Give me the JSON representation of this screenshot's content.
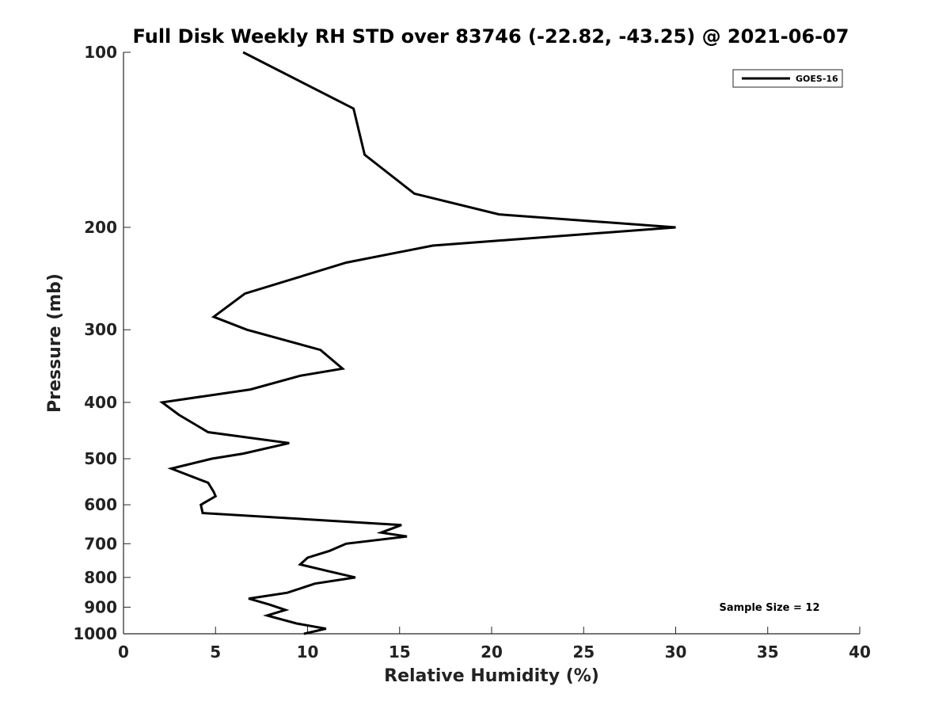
{
  "chart_data": {
    "type": "line",
    "title": "Full Disk Weekly RH STD over 83746 (-22.82, -43.25) @ 2021-06-07",
    "xlabel": "Relative Humidity (%)",
    "ylabel": "Pressure (mb)",
    "xlim": [
      0,
      40
    ],
    "ylim": [
      1000,
      100
    ],
    "y_scale": "log",
    "y_reversed": true,
    "x_ticks": [
      0,
      5,
      10,
      15,
      20,
      25,
      30,
      35,
      40
    ],
    "y_ticks": [
      100,
      200,
      300,
      400,
      500,
      600,
      700,
      800,
      900,
      1000
    ],
    "grid": false,
    "legend": {
      "placement": "top-right",
      "entries": [
        "GOES-16"
      ]
    },
    "annotation": "Sample Size = 12",
    "series": [
      {
        "name": "GOES-16",
        "color": "#000000",
        "points": [
          [
            6.5,
            100
          ],
          [
            12.5,
            125
          ],
          [
            13.1,
            150
          ],
          [
            15.8,
            175
          ],
          [
            20.4,
            190
          ],
          [
            30.0,
            200
          ],
          [
            16.8,
            215
          ],
          [
            12.1,
            230
          ],
          [
            6.6,
            260
          ],
          [
            4.9,
            285
          ],
          [
            6.7,
            300
          ],
          [
            10.7,
            325
          ],
          [
            11.9,
            350
          ],
          [
            9.6,
            360
          ],
          [
            6.9,
            380
          ],
          [
            2.1,
            400
          ],
          [
            3.0,
            420
          ],
          [
            4.6,
            450
          ],
          [
            9.0,
            470
          ],
          [
            6.5,
            490
          ],
          [
            4.8,
            500
          ],
          [
            2.6,
            520
          ],
          [
            4.6,
            550
          ],
          [
            4.9,
            570
          ],
          [
            5.0,
            580
          ],
          [
            4.2,
            600
          ],
          [
            4.3,
            620
          ],
          [
            15.1,
            650
          ],
          [
            14.0,
            670
          ],
          [
            15.4,
            680
          ],
          [
            12.1,
            700
          ],
          [
            11.2,
            720
          ],
          [
            10.0,
            740
          ],
          [
            9.6,
            760
          ],
          [
            11.1,
            780
          ],
          [
            12.6,
            800
          ],
          [
            10.4,
            820
          ],
          [
            8.9,
            850
          ],
          [
            6.8,
            870
          ],
          [
            7.9,
            890
          ],
          [
            8.8,
            910
          ],
          [
            7.8,
            930
          ],
          [
            9.4,
            960
          ],
          [
            11.0,
            980
          ],
          [
            9.8,
            1000
          ]
        ]
      }
    ]
  }
}
